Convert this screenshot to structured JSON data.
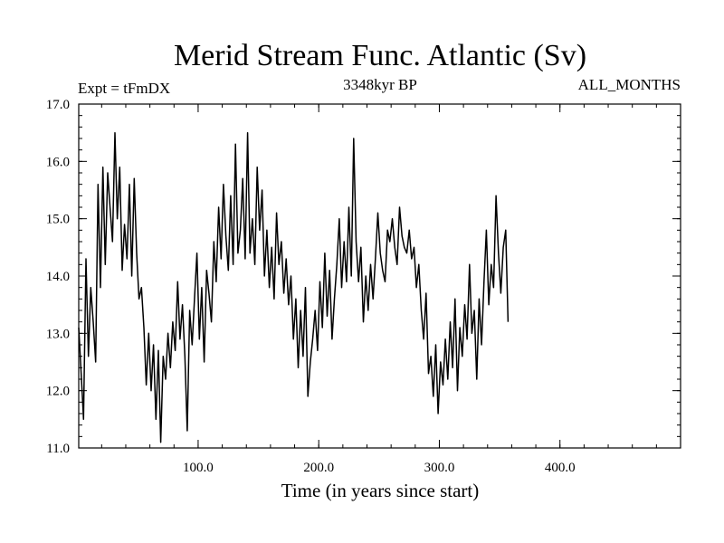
{
  "chart_data": {
    "type": "line",
    "title": "Merid Stream Func. Atlantic (Sv)",
    "subtitle_left": "Expt = tFmDX",
    "subtitle_center": "3348kyr BP",
    "subtitle_right": "ALL_MONTHS",
    "xlabel": "Time (in years since start)",
    "ylabel": "",
    "xlim": [
      1,
      500
    ],
    "ylim": [
      11.0,
      17.0
    ],
    "x_ticks": [
      100,
      200,
      300,
      400
    ],
    "x_tick_labels": [
      "100.0",
      "200.0",
      "300.0",
      "400.0"
    ],
    "y_ticks": [
      11,
      12,
      13,
      14,
      15,
      16,
      17
    ],
    "y_tick_labels": [
      "11.0",
      "12.0",
      "13.0",
      "14.0",
      "15.0",
      "16.0",
      "17.0"
    ],
    "grid": false,
    "series": [
      {
        "name": "Merid Stream Func. Atlantic",
        "color": "#000000",
        "x_start": 1,
        "x_step": 2,
        "values": [
          13.1,
          12.3,
          11.5,
          14.3,
          12.6,
          13.8,
          13.2,
          12.5,
          15.6,
          13.8,
          15.9,
          14.2,
          15.8,
          15.2,
          14.6,
          16.5,
          15.0,
          15.9,
          14.1,
          14.9,
          14.3,
          15.6,
          14.0,
          15.7,
          14.4,
          13.6,
          13.8,
          13.1,
          12.1,
          13.0,
          12.0,
          12.8,
          11.5,
          12.7,
          11.1,
          12.6,
          12.2,
          13.0,
          12.4,
          13.2,
          12.7,
          13.9,
          12.9,
          13.5,
          12.6,
          11.3,
          13.4,
          12.8,
          13.6,
          14.4,
          12.9,
          13.8,
          12.5,
          14.1,
          13.7,
          13.2,
          14.6,
          13.9,
          15.2,
          14.3,
          15.6,
          14.7,
          14.1,
          15.4,
          14.2,
          16.3,
          14.4,
          14.8,
          15.7,
          14.3,
          16.5,
          14.4,
          15.0,
          14.2,
          15.9,
          14.8,
          15.5,
          14.0,
          14.8,
          13.8,
          14.5,
          13.6,
          15.1,
          14.2,
          14.6,
          13.7,
          14.3,
          13.5,
          14.0,
          12.9,
          13.6,
          12.4,
          13.4,
          12.6,
          13.8,
          11.9,
          12.5,
          12.9,
          13.4,
          12.7,
          13.9,
          13.1,
          14.4,
          13.3,
          14.1,
          12.9,
          13.6,
          14.2,
          15.0,
          13.8,
          14.6,
          13.9,
          15.2,
          14.0,
          16.4,
          14.6,
          13.9,
          14.5,
          13.2,
          14.0,
          13.4,
          14.2,
          13.6,
          14.3,
          15.1,
          14.4,
          14.1,
          13.9,
          14.8,
          14.6,
          15.0,
          14.5,
          14.2,
          15.2,
          14.7,
          14.5,
          14.4,
          14.8,
          14.3,
          14.5,
          13.8,
          14.2,
          13.4,
          12.9,
          13.7,
          12.3,
          12.6,
          11.9,
          12.8,
          11.6,
          12.5,
          12.1,
          12.9,
          12.2,
          13.2,
          12.4,
          13.6,
          12.0,
          13.1,
          12.6,
          13.5,
          12.9,
          14.2,
          13.0,
          13.4,
          12.2,
          13.6,
          12.8,
          13.9,
          14.8,
          13.5,
          14.2,
          13.8,
          15.4,
          14.4,
          13.7,
          14.5,
          14.8,
          13.2
        ]
      }
    ]
  }
}
